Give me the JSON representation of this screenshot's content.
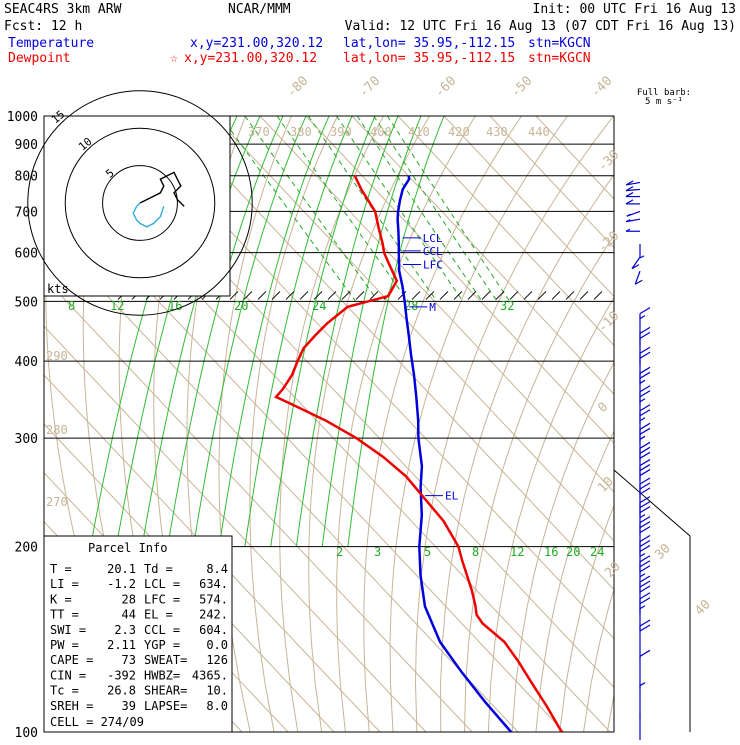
{
  "header": {
    "model": "SEAC4RS  3km ARW",
    "org": "NCAR/MMM",
    "init": "Init: 00 UTC Fri 16 Aug 13",
    "fcst": "Fcst:   12 h",
    "valid": "Valid: 12 UTC Fri 16 Aug 13 (07 CDT Fri 16 Aug 13)",
    "temp_label": "Temperature",
    "temp_xy": "x,y=231.00,320.12",
    "temp_latlon": "lat,lon= 35.95,-112.15",
    "temp_stn": "stn=KGCN",
    "dew_label": "Dewpoint",
    "dew_marker": "☆",
    "dew_xy": "x,y=231.00,320.12",
    "dew_latlon": "lat,lon= 35.95,-112.15",
    "dew_stn": "stn=KGCN"
  },
  "colors": {
    "temperature": "#0000dd",
    "dewpoint": "#ee0000",
    "dry_adiabat": "#c8b496",
    "isotherm": "#c8b496",
    "mixing_ratio": "#22aa22",
    "moist_adiabat": "#33bb33",
    "hodo_line": "#000000",
    "hodo_shear": "#33aadd",
    "wind_barb": "#0000cc"
  },
  "barb_key": {
    "line1": "Full barb:",
    "line2": "5 m s⁻¹"
  },
  "chart_data": {
    "type": "line",
    "title": "",
    "y_axis": {
      "scale": "log-pressure",
      "unit": "hPa",
      "range": [
        1000,
        100
      ],
      "ticks": [
        100,
        200,
        300,
        400,
        500,
        600,
        700,
        800,
        900,
        1000
      ],
      "tick_labels": [
        "100",
        "200",
        "300",
        "400",
        "500",
        "600",
        "700",
        "800",
        "900",
        "1000"
      ]
    },
    "isotherm_labels": [
      "-80",
      "-70",
      "-60",
      "-50",
      "-40",
      "-30",
      "-20",
      "-10",
      "0",
      "10",
      "20",
      "30",
      "40"
    ],
    "theta_labels": [
      "370",
      "380",
      "390",
      "400",
      "410",
      "420",
      "430",
      "440",
      "290",
      "280",
      "270"
    ],
    "mixing_ratio_labels": [
      "8",
      "12",
      "16",
      "20",
      "24",
      "28",
      "32"
    ],
    "lower_mixing_labels": [
      "2",
      "3",
      "5",
      "8",
      "12",
      "16",
      "20",
      "24"
    ],
    "series": [
      {
        "name": "Temperature",
        "pressure": [
          800,
          790,
          760,
          730,
          700,
          680,
          650,
          620,
          600,
          560,
          530,
          500,
          470,
          440,
          410,
          380,
          350,
          320,
          300,
          270,
          250,
          225,
          200,
          180,
          160,
          140,
          125,
          112,
          100
        ],
        "temp_c": [
          20.1,
          19.5,
          16.0,
          13.2,
          10.5,
          8.8,
          6.5,
          4.0,
          2.2,
          -1.5,
          -3.8,
          -6.5,
          -9.5,
          -12.6,
          -16.0,
          -19.5,
          -23.5,
          -28.0,
          -31.5,
          -36.5,
          -41.0,
          -46.5,
          -53.5,
          -59.0,
          -64.5,
          -68.5,
          -70.0,
          -71.0,
          -71.5
        ]
      },
      {
        "name": "Dewpoint",
        "pressure": [
          800,
          760,
          700,
          660,
          620,
          600,
          580,
          540,
          510,
          490,
          460,
          440,
          420,
          400,
          380,
          360,
          350,
          340,
          320,
          300,
          280,
          260,
          240,
          220,
          200,
          190,
          170,
          160,
          155,
          150,
          145,
          140,
          130,
          120,
          110,
          100
        ],
        "dewp_c": [
          8.4,
          7.0,
          5.5,
          3.0,
          0.5,
          -1.0,
          -2.0,
          -4.0,
          -9.0,
          -20.0,
          -28.0,
          -33.0,
          -38.0,
          -42.0,
          -46.0,
          -51.0,
          -54.0,
          -52.0,
          -48.0,
          -45.0,
          -43.0,
          -42.0,
          -42.5,
          -43.0,
          -45.0,
          -47.0,
          -51.0,
          -53.5,
          -55.0,
          -55.5,
          -55.0,
          -54.5,
          -55.5,
          -57.0,
          -58.5,
          -60.5
        ]
      }
    ],
    "parcel_levels": [
      {
        "label": "LFC",
        "pressure": 574
      },
      {
        "label": "CCL",
        "pressure": 604
      },
      {
        "label": "LCL",
        "pressure": 634
      },
      {
        "label": "EL",
        "pressure": 242
      },
      {
        "label": "M",
        "pressure": 490
      }
    ],
    "hodograph": {
      "unit_label": "kts",
      "ring_labels": [
        "5",
        "10",
        "15"
      ],
      "ring_speeds": [
        5,
        10,
        15
      ],
      "trace_u": [
        0,
        2,
        4,
        6,
        7,
        6,
        8,
        10,
        11,
        12,
        10,
        11,
        13
      ],
      "trace_v": [
        0,
        -1,
        -2,
        -3,
        -5,
        -7,
        -8,
        -9,
        -7,
        -5,
        -3,
        -1,
        1
      ],
      "shear_u": [
        0,
        -1,
        -2,
        -1,
        0,
        2,
        4,
        6,
        7
      ],
      "shear_v": [
        0,
        1,
        3,
        5,
        6,
        7,
        6,
        4,
        1
      ]
    },
    "wind_barbs": [
      {
        "pressure": 100,
        "flags": 0,
        "full": 0,
        "half": 0
      },
      {
        "pressure": 112,
        "flags": 0,
        "full": 0,
        "half": 1
      },
      {
        "pressure": 125,
        "flags": 0,
        "full": 1,
        "half": 0
      },
      {
        "pressure": 140,
        "flags": 0,
        "full": 2,
        "half": 0
      },
      {
        "pressure": 155,
        "flags": 0,
        "full": 2,
        "half": 1
      },
      {
        "pressure": 165,
        "flags": 0,
        "full": 3,
        "half": 0
      },
      {
        "pressure": 178,
        "flags": 0,
        "full": 3,
        "half": 1
      },
      {
        "pressure": 192,
        "flags": 0,
        "full": 3,
        "half": 1
      },
      {
        "pressure": 206,
        "flags": 0,
        "full": 3,
        "half": 0
      },
      {
        "pressure": 222,
        "flags": 0,
        "full": 3,
        "half": 1
      },
      {
        "pressure": 238,
        "flags": 0,
        "full": 3,
        "half": 0
      },
      {
        "pressure": 255,
        "flags": 0,
        "full": 3,
        "half": 0
      },
      {
        "pressure": 272,
        "flags": 0,
        "full": 3,
        "half": 0
      },
      {
        "pressure": 292,
        "flags": 0,
        "full": 2,
        "half": 1
      },
      {
        "pressure": 313,
        "flags": 0,
        "full": 2,
        "half": 1
      },
      {
        "pressure": 336,
        "flags": 0,
        "full": 2,
        "half": 1
      },
      {
        "pressure": 360,
        "flags": 0,
        "full": 2,
        "half": 1
      },
      {
        "pressure": 388,
        "flags": 0,
        "full": 2,
        "half": 0
      },
      {
        "pressure": 418,
        "flags": 0,
        "full": 2,
        "half": 0
      },
      {
        "pressure": 450,
        "flags": 0,
        "full": 1,
        "half": 1
      }
    ],
    "low_wind_barbs": [
      {
        "pressure": 560,
        "dir": 200,
        "full": 1,
        "half": 0
      },
      {
        "pressure": 590,
        "dir": 215,
        "full": 1,
        "half": 0
      },
      {
        "pressure": 620,
        "dir": 180,
        "full": 0,
        "half": 1
      },
      {
        "pressure": 650,
        "dir": 270,
        "full": 0,
        "half": 1
      },
      {
        "pressure": 680,
        "dir": 260,
        "full": 0,
        "half": 1
      },
      {
        "pressure": 700,
        "dir": 250,
        "full": 0,
        "half": 1
      },
      {
        "pressure": 720,
        "dir": 270,
        "full": 1,
        "half": 0
      },
      {
        "pressure": 740,
        "dir": 270,
        "full": 1,
        "half": 0
      },
      {
        "pressure": 760,
        "dir": 265,
        "full": 1,
        "half": 0
      },
      {
        "pressure": 780,
        "dir": 260,
        "full": 1,
        "half": 0
      }
    ]
  },
  "parcel_info": {
    "title": "Parcel Info",
    "rows": [
      [
        "T    =",
        "20.1",
        "Td   =",
        "8.4"
      ],
      [
        "LI   =",
        "-1.2",
        "LCL  =",
        "634."
      ],
      [
        "K    =",
        "28",
        "LFC  =",
        "574."
      ],
      [
        "TT   =",
        "44",
        "EL   =",
        "242."
      ],
      [
        "SWI  =",
        "2.3",
        "CCL  =",
        "604."
      ],
      [
        "PW   =",
        "2.11",
        "YGP  =",
        "0.0"
      ],
      [
        "CAPE =",
        "73",
        "SWEAT=",
        "126"
      ],
      [
        "CIN  =",
        "-392",
        "HWBZ=",
        "4365."
      ],
      [
        "Tc   =",
        "26.8",
        "SHEAR=",
        "10."
      ],
      [
        "SREH =",
        "39",
        "LAPSE=",
        "8.0"
      ]
    ],
    "cell": "CELL = 274/09"
  }
}
